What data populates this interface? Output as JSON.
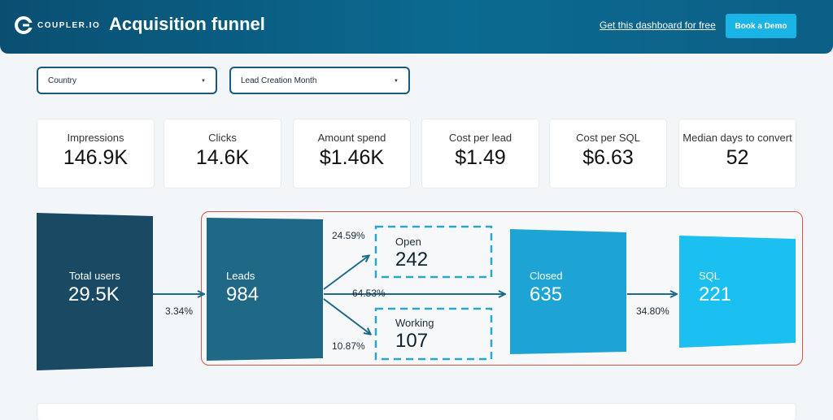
{
  "header": {
    "brand": "COUPLER.IO",
    "title": "Acquisition funnel",
    "link": "Get this dashboard for free",
    "demo_button": "Book a Demo"
  },
  "filters": [
    {
      "label": "Country"
    },
    {
      "label": "Lead Creation Month"
    }
  ],
  "kpis": [
    {
      "label": "Impressions",
      "value": "146.9K"
    },
    {
      "label": "Clicks",
      "value": "14.6K"
    },
    {
      "label": "Amount spend",
      "value": "$1.46K"
    },
    {
      "label": "Cost per lead",
      "value": "$1.49"
    },
    {
      "label": "Cost per SQL",
      "value": "$6.63"
    },
    {
      "label": "Median days to convert",
      "value": "52"
    }
  ],
  "funnel": {
    "total": {
      "label": "Total users",
      "value": "29.5K"
    },
    "leads": {
      "label": "Leads",
      "value": "984"
    },
    "open": {
      "label": "Open",
      "value": "242"
    },
    "working": {
      "label": "Working",
      "value": "107"
    },
    "closed": {
      "label": "Closed",
      "value": "635"
    },
    "sql": {
      "label": "SQL",
      "value": "221"
    },
    "rates": {
      "total_to_leads": "3.34%",
      "leads_to_open": "24.59%",
      "leads_to_closed": "64.53%",
      "leads_to_working": "10.87%",
      "closed_to_sql": "34.80%"
    }
  },
  "colors": {
    "header": "#0a5a80",
    "total": "#1a4a63",
    "leads": "#1f6886",
    "closed": "#1ea4d4",
    "sql": "#1cc0f0",
    "arrow": "#1e6a8a",
    "dashed": "#2aa7c9",
    "group_border": "#d9534f",
    "demo": "#1bb4e6"
  }
}
